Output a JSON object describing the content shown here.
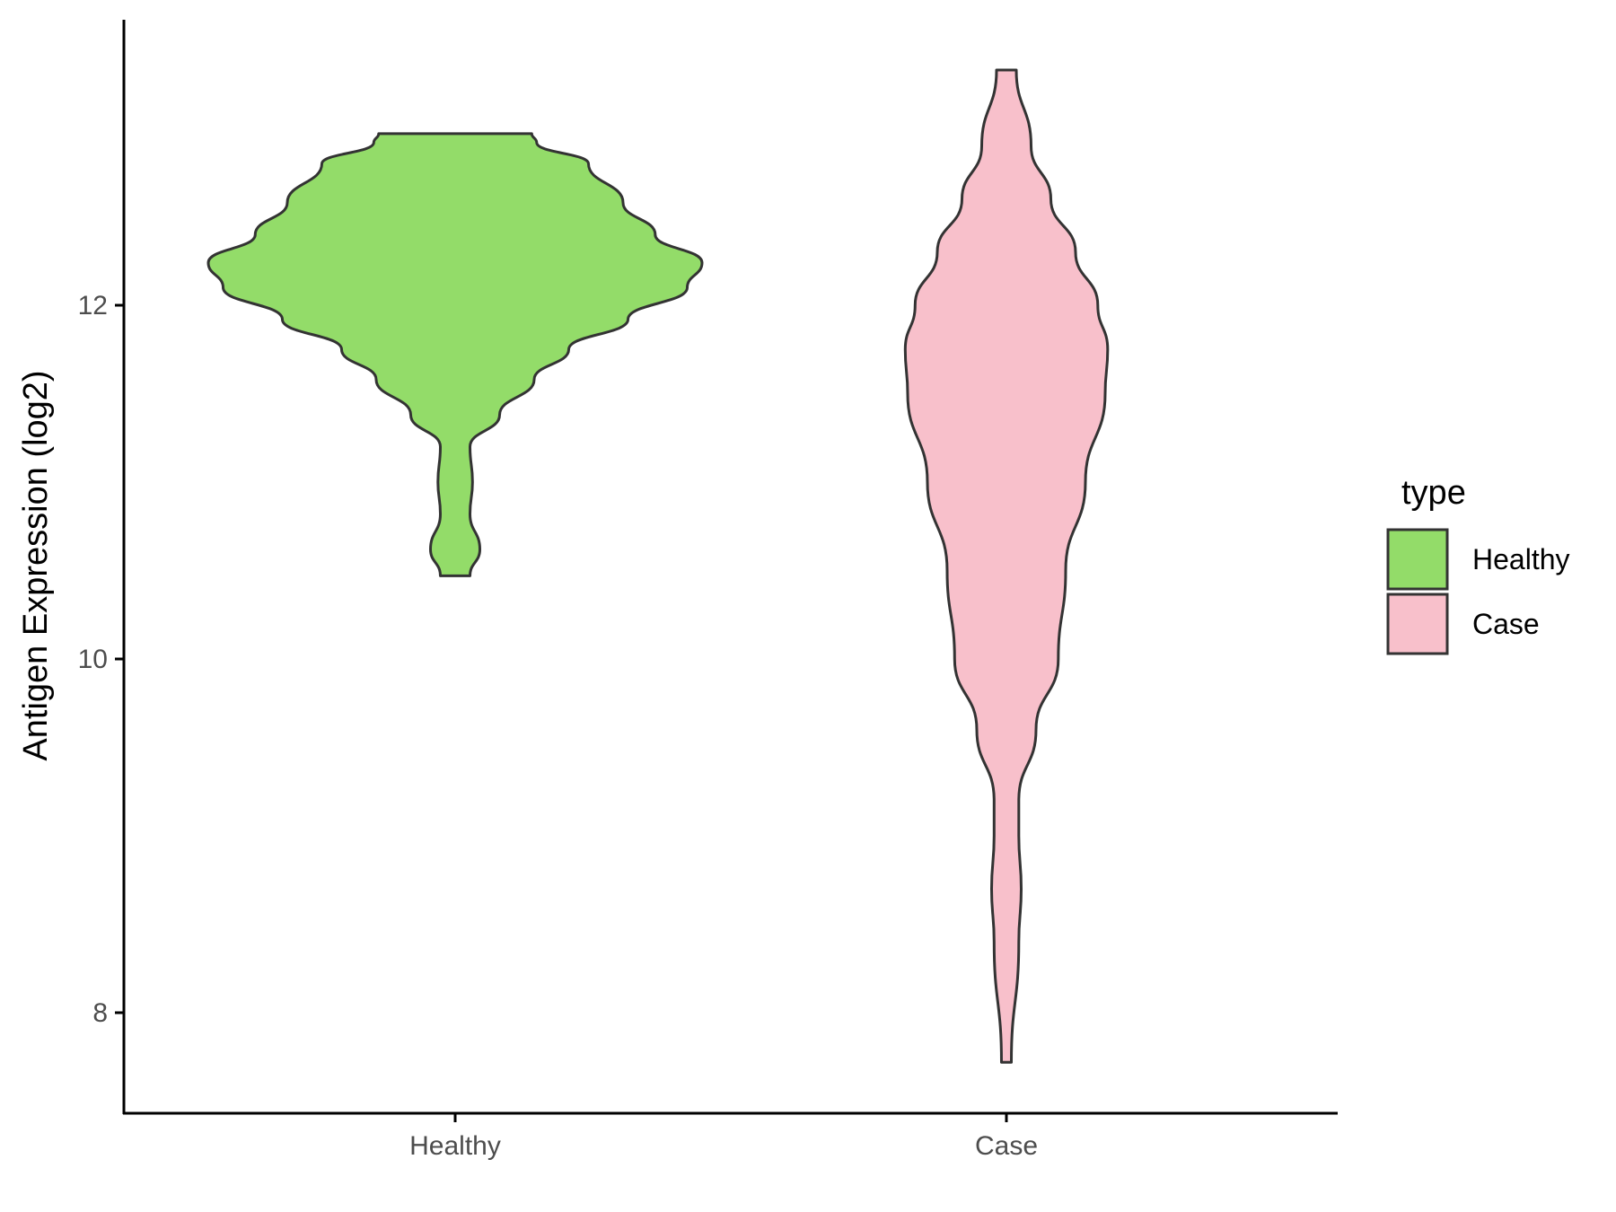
{
  "chart_data": {
    "type": "violin",
    "title": "",
    "xlabel": "",
    "ylabel": "Antigen Expression (log2)",
    "categories": [
      "Healthy",
      "Case"
    ],
    "ylim": [
      7.4,
      13.6
    ],
    "yticks": [
      8,
      10,
      12
    ],
    "legend": {
      "title": "type",
      "position": "right",
      "entries": [
        "Healthy",
        "Case"
      ]
    },
    "series": [
      {
        "category": "Healthy",
        "color": "#93dc69",
        "min": 10.47,
        "max": 12.97,
        "density_profile": [
          [
            10.47,
            0.06
          ],
          [
            10.62,
            0.1
          ],
          [
            10.82,
            0.06
          ],
          [
            11.0,
            0.07
          ],
          [
            11.2,
            0.06
          ],
          [
            11.38,
            0.18
          ],
          [
            11.58,
            0.32
          ],
          [
            11.75,
            0.46
          ],
          [
            11.92,
            0.7
          ],
          [
            12.1,
            0.94
          ],
          [
            12.24,
            1.0
          ],
          [
            12.4,
            0.81
          ],
          [
            12.58,
            0.68
          ],
          [
            12.8,
            0.54
          ],
          [
            12.92,
            0.33
          ],
          [
            12.97,
            0.31
          ]
        ]
      },
      {
        "category": "Case",
        "color": "#f8c0cb",
        "min": 7.72,
        "max": 13.33,
        "density_profile": [
          [
            7.72,
            0.02
          ],
          [
            8.4,
            0.05
          ],
          [
            8.7,
            0.06
          ],
          [
            9.0,
            0.05
          ],
          [
            9.2,
            0.05
          ],
          [
            9.6,
            0.12
          ],
          [
            10.0,
            0.21
          ],
          [
            10.5,
            0.24
          ],
          [
            11.0,
            0.32
          ],
          [
            11.5,
            0.4
          ],
          [
            11.75,
            0.41
          ],
          [
            12.0,
            0.37
          ],
          [
            12.3,
            0.28
          ],
          [
            12.6,
            0.18
          ],
          [
            12.9,
            0.1
          ],
          [
            13.33,
            0.04
          ]
        ]
      }
    ],
    "outline_color": "#333333"
  }
}
